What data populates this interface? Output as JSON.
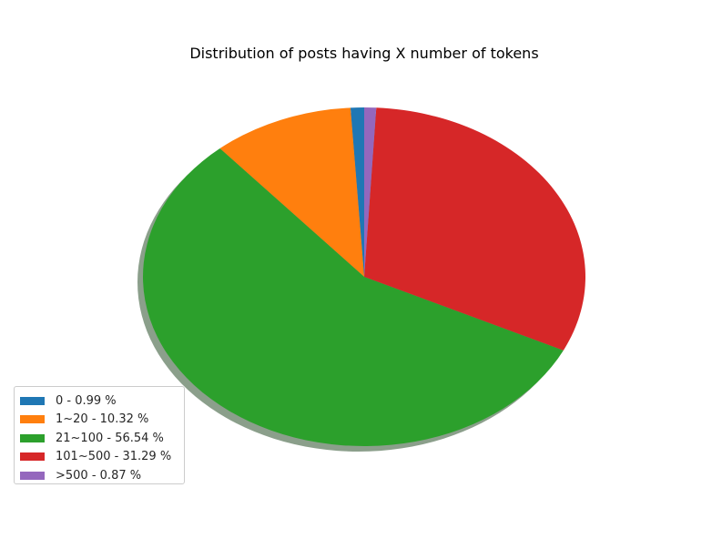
{
  "chart_data": {
    "type": "pie",
    "title": "Distribution of posts having X number of tokens",
    "categories": [
      "0",
      "1~20",
      "21~100",
      "101~500",
      ">500"
    ],
    "values": [
      0.99,
      10.32,
      56.54,
      31.29,
      0.87
    ],
    "colors": [
      "#1f77b4",
      "#ff7f0e",
      "#2ca02c",
      "#d62728",
      "#9467bd"
    ],
    "shadow": true,
    "start_angle_deg": 90,
    "direction": "counterclockwise",
    "legend_position": "lower-left",
    "legend": [
      "0 - 0.99 %",
      "1~20 - 10.32 %",
      "21~100 - 56.54 %",
      "101~500 - 31.29 %",
      ">500 - 0.87 %"
    ]
  }
}
